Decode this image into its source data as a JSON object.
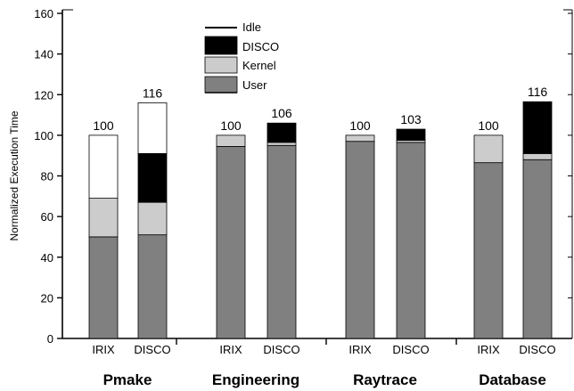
{
  "chart_data": {
    "type": "bar",
    "stacked": true,
    "ylabel": "Normalized Execution Time",
    "ylim": [
      0,
      160
    ],
    "yticks": [
      0,
      20,
      40,
      60,
      80,
      100,
      120,
      140,
      160
    ],
    "groups": [
      {
        "name": "Pmake",
        "bars": [
          {
            "label": "IRIX",
            "total": "100",
            "segments": {
              "User": 50,
              "Kernel": 19,
              "DISCO": 0,
              "Idle": 31
            }
          },
          {
            "label": "DISCO",
            "total": "116",
            "segments": {
              "User": 51,
              "Kernel": 16,
              "DISCO": 24,
              "Idle": 25
            }
          }
        ]
      },
      {
        "name": "Engineering",
        "bars": [
          {
            "label": "IRIX",
            "total": "100",
            "segments": {
              "User": 94.5,
              "Kernel": 5.5,
              "DISCO": 0,
              "Idle": 0
            }
          },
          {
            "label": "DISCO",
            "total": "106",
            "segments": {
              "User": 95,
              "Kernel": 1.5,
              "DISCO": 9.5,
              "Idle": 0
            }
          }
        ]
      },
      {
        "name": "Raytrace",
        "bars": [
          {
            "label": "IRIX",
            "total": "100",
            "segments": {
              "User": 97,
              "Kernel": 3,
              "DISCO": 0,
              "Idle": 0
            }
          },
          {
            "label": "DISCO",
            "total": "103",
            "segments": {
              "User": 96.5,
              "Kernel": 1,
              "DISCO": 5.5,
              "Idle": 0
            }
          }
        ]
      },
      {
        "name": "Database",
        "bars": [
          {
            "label": "IRIX",
            "total": "100",
            "segments": {
              "User": 86.5,
              "Kernel": 13.5,
              "DISCO": 0,
              "Idle": 0
            }
          },
          {
            "label": "DISCO",
            "total": "116",
            "segments": {
              "User": 88,
              "Kernel": 3,
              "DISCO": 25.5,
              "Idle": 0
            }
          }
        ]
      }
    ],
    "series": [
      {
        "name": "Idle",
        "color": "#ffffff"
      },
      {
        "name": "DISCO",
        "color": "#000000"
      },
      {
        "name": "Kernel",
        "color": "#cccccc"
      },
      {
        "name": "User",
        "color": "#808080"
      }
    ],
    "legend_position": "top-center",
    "grid": false
  }
}
